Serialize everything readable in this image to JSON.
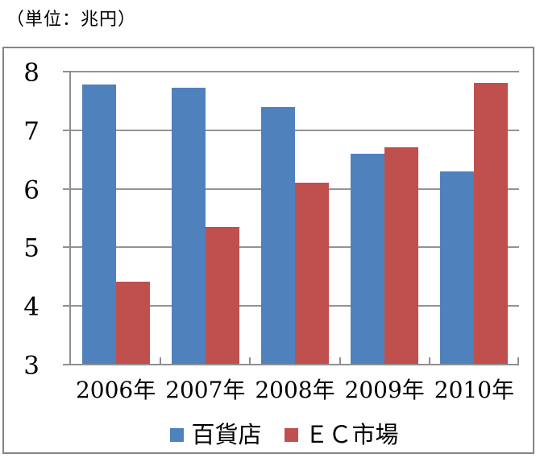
{
  "unit_label": "（単位：兆円）",
  "colors": {
    "series_blue": "#4F81BD",
    "series_red": "#C0504D",
    "axis_gray": "#8f8f8f",
    "gridline_gray": "#939393",
    "chart_border_gray": "#858585",
    "text": "#000000"
  },
  "chart_data": {
    "type": "bar",
    "title": "",
    "subtitle": "（単位：兆円）",
    "categories": [
      "2006年",
      "2007年",
      "2008年",
      "2009年",
      "2010年"
    ],
    "series": [
      {
        "name": "百貨店",
        "color": "#4F81BD",
        "values": [
          7.77,
          7.71,
          7.38,
          6.58,
          6.29
        ]
      },
      {
        "name": "ＥＣ市場",
        "color": "#C0504D",
        "values": [
          4.4,
          5.34,
          6.09,
          6.7,
          7.79
        ]
      }
    ],
    "xlabel": "",
    "ylabel": "",
    "ylim": [
      3,
      8
    ],
    "yticks": [
      3,
      4,
      5,
      6,
      7,
      8
    ],
    "grid": true,
    "x_tick_marks": "inside",
    "y_tick_marks": "outside",
    "legend_position": "bottom"
  }
}
